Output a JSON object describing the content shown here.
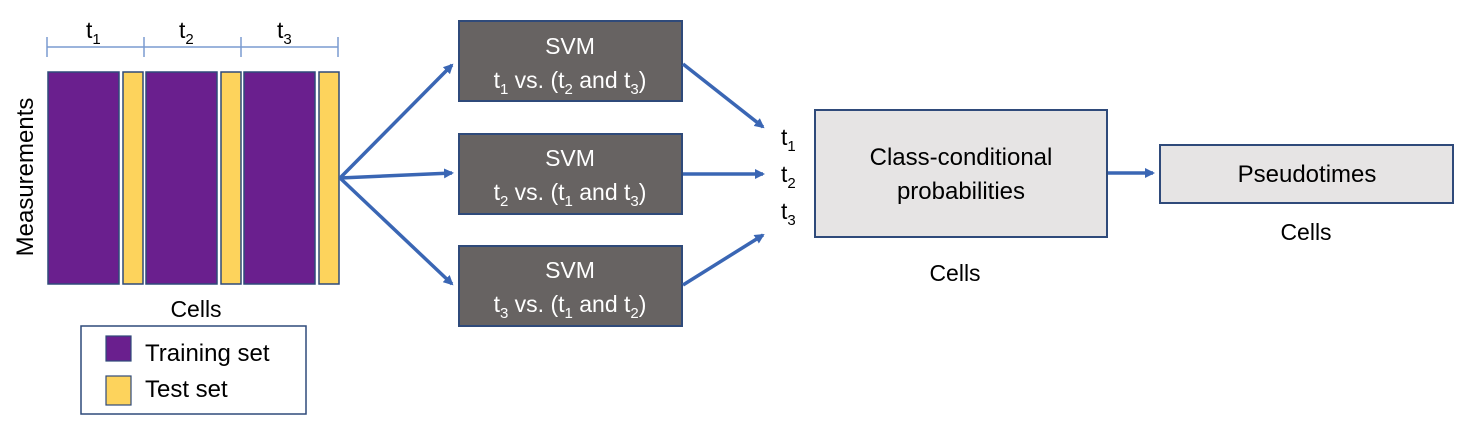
{
  "matrix": {
    "y_label": "Measurements",
    "x_label": "Cells",
    "time_labels": [
      {
        "base": "t",
        "sub": "1"
      },
      {
        "base": "t",
        "sub": "2"
      },
      {
        "base": "t",
        "sub": "3"
      }
    ]
  },
  "legend": {
    "items": [
      {
        "label": "Training set",
        "color": "#6a1f8e"
      },
      {
        "label": "Test set",
        "color": "#fdd35c"
      }
    ]
  },
  "svms": [
    {
      "title": "SVM",
      "a": "1",
      "b": "2",
      "c": "3"
    },
    {
      "title": "SVM",
      "a": "2",
      "b": "1",
      "c": "3"
    },
    {
      "title": "SVM",
      "a": "3",
      "b": "1",
      "c": "2"
    }
  ],
  "svm_text": {
    "t": "t",
    "vs": " vs. (",
    "and": " and ",
    "close": ")"
  },
  "prob_inputs": [
    {
      "base": "t",
      "sub": "1"
    },
    {
      "base": "t",
      "sub": "2"
    },
    {
      "base": "t",
      "sub": "3"
    }
  ],
  "prob_box": {
    "line1": "Class-conditional",
    "line2": "probabilities",
    "caption": "Cells"
  },
  "pseudo_box": {
    "label": "Pseudotimes",
    "caption": "Cells"
  },
  "colors": {
    "training": "#6a1f8e",
    "test": "#fdd35c",
    "svm_fill": "#676362",
    "box_fill": "#e6e4e4",
    "border": "#2f4a7a",
    "arrow": "#3a66b4",
    "bracket": "#7a9bd0"
  }
}
